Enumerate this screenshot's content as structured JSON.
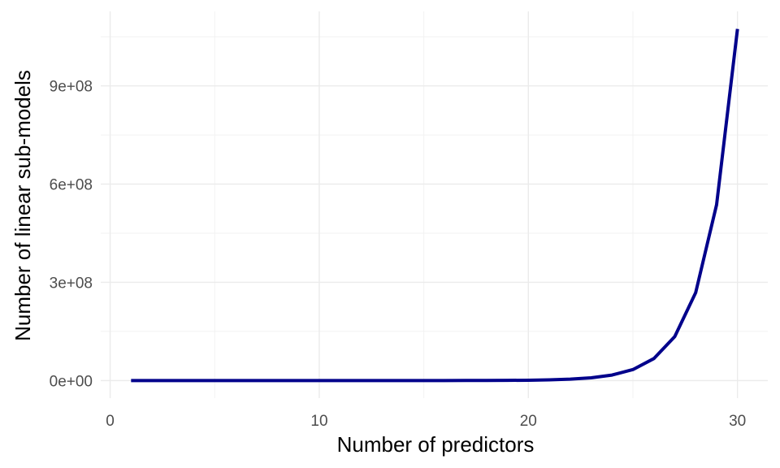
{
  "chart_data": {
    "type": "line",
    "title": "",
    "xlabel": "Number of predictors",
    "ylabel": "Number of linear sub-models",
    "xlim": [
      -0.45,
      31.45
    ],
    "ylim": [
      -53687091,
      1127428914
    ],
    "x_ticks": [
      0,
      10,
      20,
      30
    ],
    "x_tick_labels": [
      "0",
      "10",
      "20",
      "30"
    ],
    "y_ticks": [
      0,
      300000000,
      600000000,
      900000000
    ],
    "y_tick_labels": [
      "0e+00",
      "3e+08",
      "6e+08",
      "9e+08"
    ],
    "grid": true,
    "legend": "none",
    "line_color": "#00008B",
    "series": [
      {
        "x": [
          1,
          2,
          3,
          4,
          5,
          6,
          7,
          8,
          9,
          10,
          11,
          12,
          13,
          14,
          15,
          16,
          17,
          18,
          19,
          20,
          21,
          22,
          23,
          24,
          25,
          26,
          27,
          28,
          29,
          30
        ],
        "values": [
          2,
          4,
          8,
          16,
          32,
          64,
          128,
          256,
          512,
          1024,
          2048,
          4096,
          8192,
          16384,
          32768,
          65536,
          131072,
          262144,
          524288,
          1048576,
          2097152,
          4194304,
          8388608,
          16777216,
          33554432,
          67108864,
          134217728,
          268435456,
          536870912,
          1073741824
        ]
      }
    ]
  }
}
